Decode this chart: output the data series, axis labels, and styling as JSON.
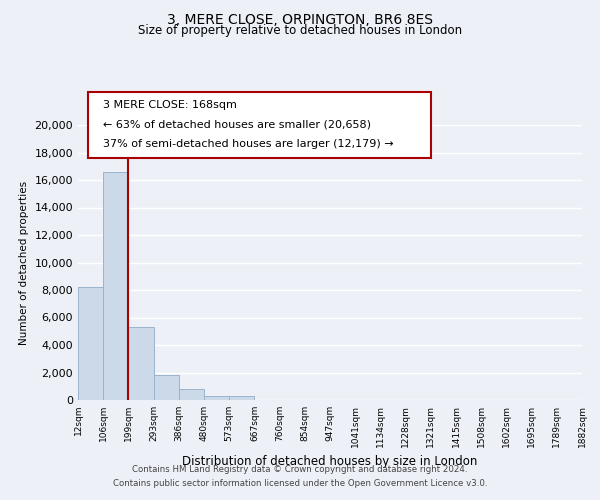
{
  "title": "3, MERE CLOSE, ORPINGTON, BR6 8ES",
  "subtitle": "Size of property relative to detached houses in London",
  "xlabel": "Distribution of detached houses by size in London",
  "ylabel": "Number of detached properties",
  "bar_values": [
    8200,
    16550,
    5300,
    1800,
    800,
    300,
    270,
    0,
    0,
    0,
    0,
    0,
    0,
    0,
    0,
    0,
    0,
    0,
    0,
    0
  ],
  "bar_color": "#ccd9e8",
  "bar_edge_color": "#9ab3cc",
  "x_labels": [
    "12sqm",
    "106sqm",
    "199sqm",
    "293sqm",
    "386sqm",
    "480sqm",
    "573sqm",
    "667sqm",
    "760sqm",
    "854sqm",
    "947sqm",
    "1041sqm",
    "1134sqm",
    "1228sqm",
    "1321sqm",
    "1415sqm",
    "1508sqm",
    "1602sqm",
    "1695sqm",
    "1789sqm",
    "1882sqm"
  ],
  "ylim": [
    0,
    20000
  ],
  "yticks": [
    0,
    2000,
    4000,
    6000,
    8000,
    10000,
    12000,
    14000,
    16000,
    18000,
    20000
  ],
  "property_line_color": "#aa0000",
  "annotation_title": "3 MERE CLOSE: 168sqm",
  "annotation_line2": "← 63% of detached houses are smaller (20,658)",
  "annotation_line3": "37% of semi-detached houses are larger (12,179) →",
  "footer_line1": "Contains HM Land Registry data © Crown copyright and database right 2024.",
  "footer_line2": "Contains public sector information licensed under the Open Government Licence v3.0.",
  "background_color": "#edf1f7",
  "grid_color": "#ffffff",
  "n_bars": 20,
  "n_labels": 21
}
